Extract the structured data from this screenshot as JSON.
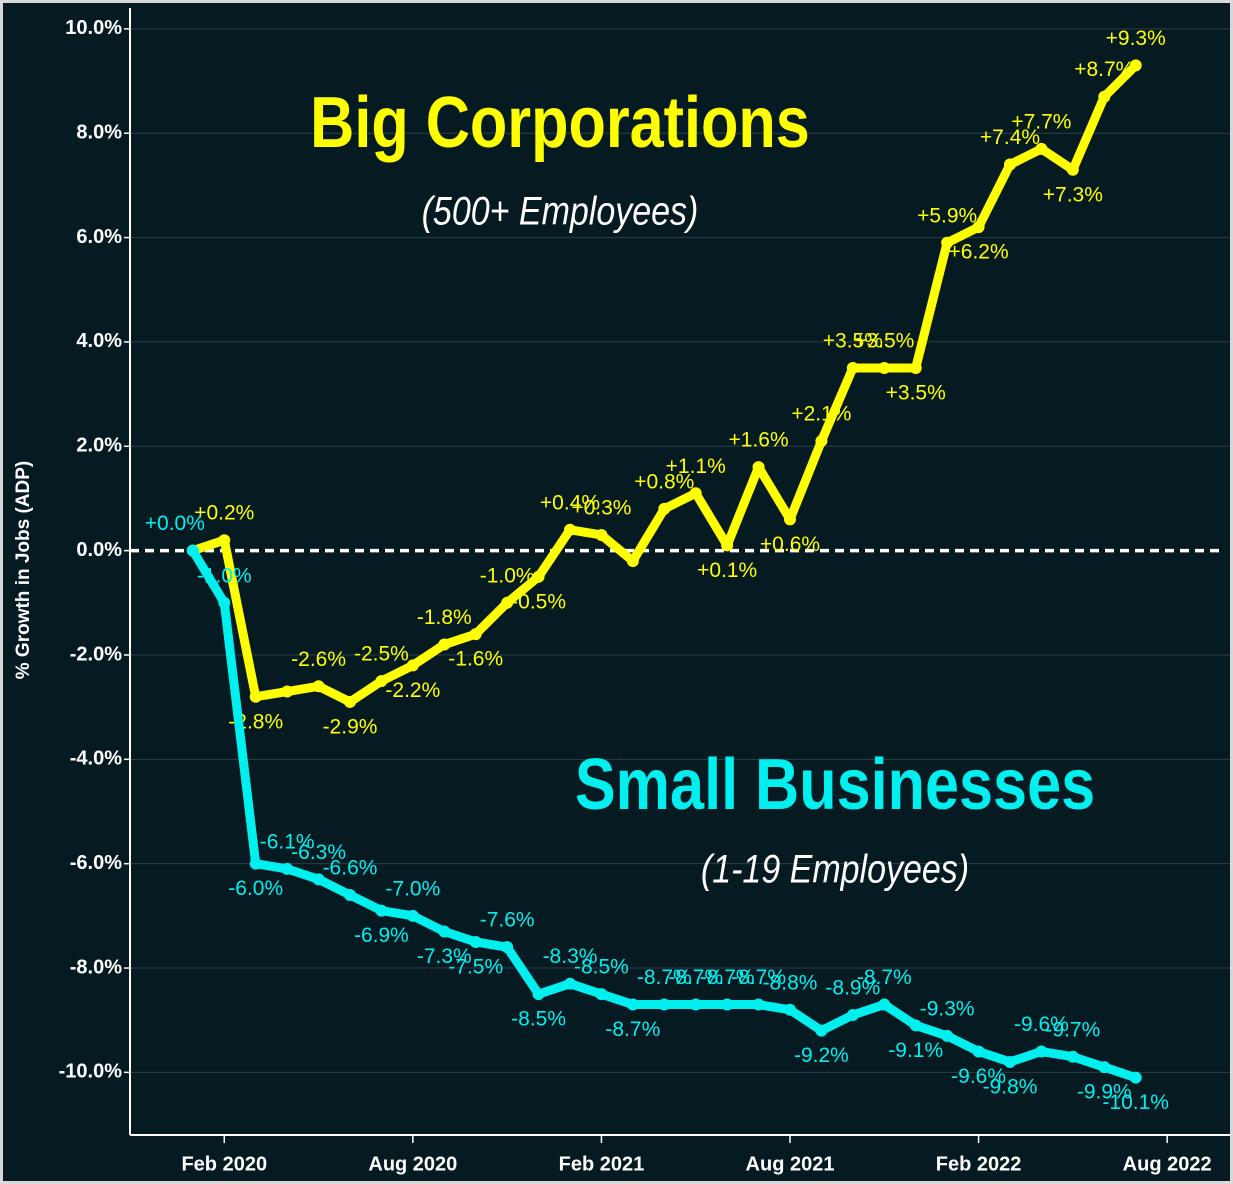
{
  "chart_data": {
    "type": "line",
    "y_label": "% Growth in Jobs (ADP)",
    "annotations": [
      "Big Corporations",
      "(500+ Employees)",
      "Small Businesses",
      "(1-19 Employees)"
    ],
    "x": [
      "2020-01",
      "2020-02",
      "2020-03",
      "2020-04",
      "2020-05",
      "2020-06",
      "2020-07",
      "2020-08",
      "2020-09",
      "2020-10",
      "2020-11",
      "2020-12",
      "2021-01",
      "2021-02",
      "2021-03",
      "2021-04",
      "2021-05",
      "2021-06",
      "2021-07",
      "2021-08",
      "2021-09",
      "2021-10",
      "2021-11",
      "2021-12",
      "2022-01",
      "2022-02",
      "2022-03",
      "2022-04",
      "2022-05",
      "2022-06",
      "2022-07"
    ],
    "xlim": [
      "2019-11",
      "2022-10"
    ],
    "xticks": [
      {
        "value": "2020-02",
        "label": "Feb 2020"
      },
      {
        "value": "2020-08",
        "label": "Aug 2020"
      },
      {
        "value": "2021-02",
        "label": "Feb 2021"
      },
      {
        "value": "2021-08",
        "label": "Aug 2021"
      },
      {
        "value": "2022-02",
        "label": "Feb 2022"
      },
      {
        "value": "2022-08",
        "label": "Aug 2022"
      }
    ],
    "ylim": [
      -11.2,
      10.4
    ],
    "yticks": [
      {
        "value": -10,
        "label": "-10.0%"
      },
      {
        "value": -8,
        "label": "-8.0%"
      },
      {
        "value": -6,
        "label": "-6.0%"
      },
      {
        "value": -4,
        "label": "-4.0%"
      },
      {
        "value": -2,
        "label": "-2.0%"
      },
      {
        "value": 0,
        "label": "0.0%"
      },
      {
        "value": 2,
        "label": "2.0%"
      },
      {
        "value": 4,
        "label": "4.0%"
      },
      {
        "value": 6,
        "label": "6.0%"
      },
      {
        "value": 8,
        "label": "8.0%"
      },
      {
        "value": 10,
        "label": "10.0%"
      }
    ],
    "grid": true,
    "series": [
      {
        "name": "Big Corporations",
        "color": "#ffff00",
        "values": [
          0.0,
          0.2,
          -2.8,
          -2.7,
          -2.6,
          -2.9,
          -2.5,
          -2.2,
          -1.8,
          -1.6,
          -1.0,
          -0.5,
          0.4,
          0.3,
          -0.2,
          0.8,
          1.1,
          0.1,
          1.6,
          0.6,
          2.1,
          3.5,
          3.5,
          3.5,
          5.9,
          6.2,
          7.4,
          7.7,
          7.3,
          8.7,
          9.3
        ],
        "value_labels": [
          null,
          "+0.2%",
          "-2.8%",
          null,
          "-2.6%",
          "-2.9%",
          "-2.5%",
          "-2.2%",
          "-1.8%",
          "-1.6%",
          "-1.0%",
          "-0.5%",
          "+0.4%",
          "+0.3%",
          null,
          "+0.8%",
          "+1.1%",
          "+0.1%",
          "+1.6%",
          "+0.6%",
          "+2.1%",
          "+3.5%",
          "+3.5%",
          "+3.5%",
          "+5.9%",
          "+6.2%",
          "+7.4%",
          "+7.7%",
          "+7.3%",
          "+8.7%",
          "+9.3%"
        ]
      },
      {
        "name": "Small Businesses",
        "color": "#00f0f0",
        "values": [
          0.0,
          -1.0,
          -6.0,
          -6.1,
          -6.3,
          -6.6,
          -6.9,
          -7.0,
          -7.3,
          -7.5,
          -7.6,
          -8.5,
          -8.3,
          -8.5,
          -8.7,
          -8.7,
          -8.7,
          -8.7,
          -8.7,
          -8.8,
          -9.2,
          -8.9,
          -8.7,
          -9.1,
          -9.3,
          -9.6,
          -9.8,
          -9.6,
          -9.7,
          -9.9,
          -10.1
        ],
        "value_labels": [
          "+0.0%",
          "-1.0%",
          "-6.0%",
          "-6.1%",
          "-6.3%",
          "-6.6%",
          "-6.9%",
          "-7.0%",
          "-7.3%",
          "-7.5%",
          "-7.6%",
          "-8.5%",
          "-8.3%",
          "-8.5%",
          "-8.7%",
          "-8.7%",
          "-8.7%",
          "-8.7%",
          "-8.7%",
          "-8.8%",
          "-9.2%",
          "-8.9%",
          "-8.7%",
          "-9.1%",
          "-9.3%",
          "-9.6%",
          "-9.8%",
          "-9.6%",
          "-9.7%",
          "-9.9%",
          "-10.1%"
        ]
      }
    ]
  }
}
